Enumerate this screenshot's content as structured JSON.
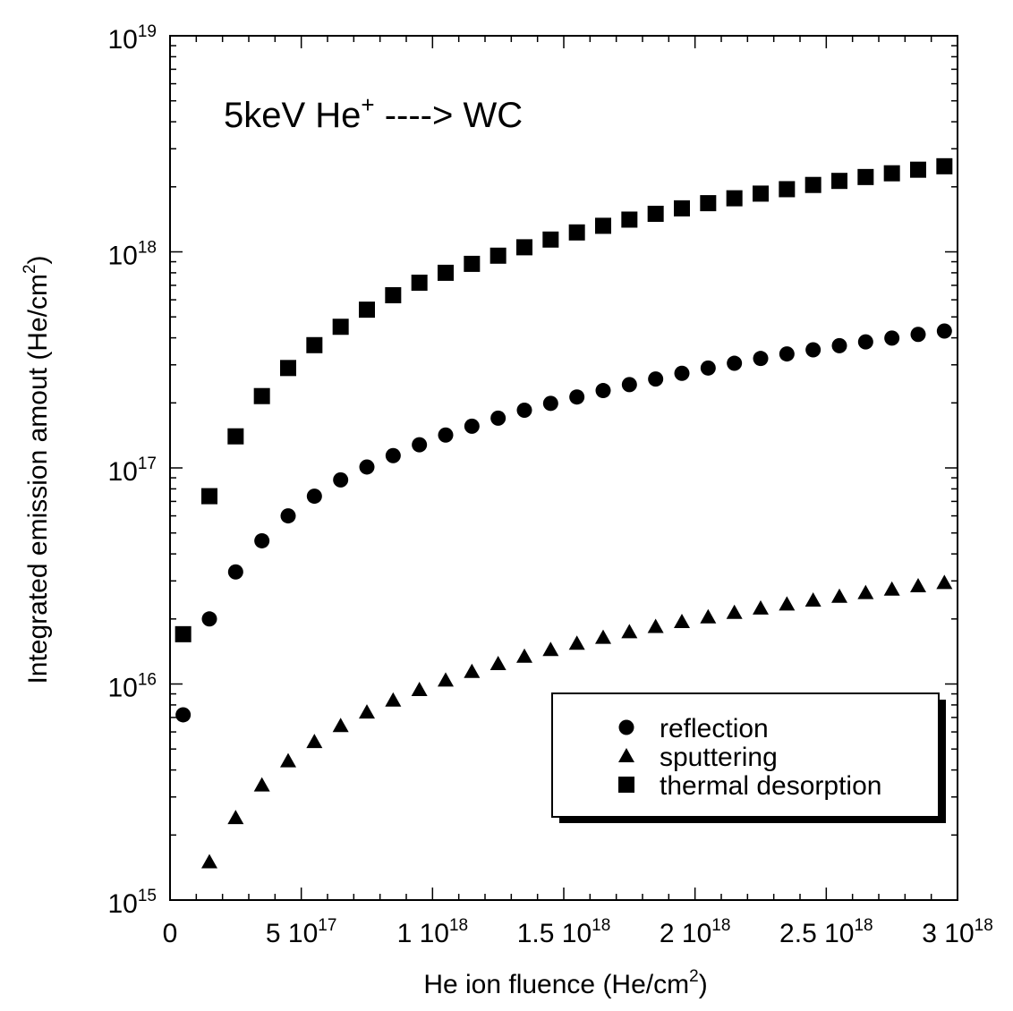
{
  "chart_data": {
    "type": "scatter",
    "annotation": {
      "main": "5keV He",
      "sup": "+",
      "rest": " ----> WC"
    },
    "xlabel": {
      "main": "He ion fluence (He/cm",
      "sup": "2",
      "close": ")"
    },
    "ylabel": {
      "main": "Integrated emission amout (He/cm",
      "sup": "2",
      "close": ")"
    },
    "xlim": [
      0,
      3e+18
    ],
    "ylim": [
      1000000000000000.0,
      1e+19
    ],
    "yscale": "log",
    "grid": false,
    "legend_position": "bottom-right",
    "x_ticks": [
      {
        "value": 0,
        "base": "0",
        "exp": ""
      },
      {
        "value": 5e+17,
        "base": "5 10",
        "exp": "17"
      },
      {
        "value": 1e+18,
        "base": "1 10",
        "exp": "18"
      },
      {
        "value": 1.5e+18,
        "base": "1.5 10",
        "exp": "18"
      },
      {
        "value": 2e+18,
        "base": "2 10",
        "exp": "18"
      },
      {
        "value": 2.5e+18,
        "base": "2.5 10",
        "exp": "18"
      },
      {
        "value": 3e+18,
        "base": "3 10",
        "exp": "18"
      }
    ],
    "y_ticks": [
      {
        "value": 1000000000000000.0,
        "base": "10",
        "exp": "15"
      },
      {
        "value": 1e+16,
        "base": "10",
        "exp": "16"
      },
      {
        "value": 1e+17,
        "base": "10",
        "exp": "17"
      },
      {
        "value": 1e+18,
        "base": "10",
        "exp": "18"
      },
      {
        "value": 1e+19,
        "base": "10",
        "exp": "19"
      }
    ],
    "series": [
      {
        "name": "reflection",
        "marker": "circle",
        "x": [
          5e+16,
          1.5e+17,
          2.5e+17,
          3.5e+17,
          4.5e+17,
          5.5e+17,
          6.5e+17,
          7.5e+17,
          8.5e+17,
          9.5e+17,
          1.05e+18,
          1.15e+18,
          1.25e+18,
          1.35e+18,
          1.45e+18,
          1.55e+18,
          1.65e+18,
          1.75e+18,
          1.85e+18,
          1.95e+18,
          2.05e+18,
          2.15e+18,
          2.25e+18,
          2.35e+18,
          2.45e+18,
          2.55e+18,
          2.65e+18,
          2.75e+18,
          2.85e+18,
          2.95e+18
        ],
        "y": [
          7200000000000000.0,
          2e+16,
          3.3e+16,
          4.6e+16,
          6e+16,
          7.4e+16,
          8.8e+16,
          1.01e+17,
          1.14e+17,
          1.28e+17,
          1.42e+17,
          1.56e+17,
          1.7e+17,
          1.85e+17,
          1.99e+17,
          2.13e+17,
          2.28e+17,
          2.43e+17,
          2.58e+17,
          2.74e+17,
          2.9e+17,
          3.05e+17,
          3.21e+17,
          3.37e+17,
          3.52e+17,
          3.68e+17,
          3.83e+17,
          3.99e+17,
          4.15e+17,
          4.3e+17
        ]
      },
      {
        "name": "sputtering",
        "marker": "triangle",
        "x": [
          1.5e+17,
          2.5e+17,
          3.5e+17,
          4.5e+17,
          5.5e+17,
          6.5e+17,
          7.5e+17,
          8.5e+17,
          9.5e+17,
          1.05e+18,
          1.15e+18,
          1.25e+18,
          1.35e+18,
          1.45e+18,
          1.55e+18,
          1.65e+18,
          1.75e+18,
          1.85e+18,
          1.95e+18,
          2.05e+18,
          2.15e+18,
          2.25e+18,
          2.35e+18,
          2.45e+18,
          2.55e+18,
          2.65e+18,
          2.75e+18,
          2.85e+18,
          2.95e+18
        ],
        "y": [
          1500000000000000.0,
          2400000000000000.0,
          3400000000000000.0,
          4400000000000000.0,
          5400000000000000.0,
          6400000000000000.0,
          7400000000000000.0,
          8400000000000000.0,
          9400000000000000.0,
          1.04e+16,
          1.14e+16,
          1.24e+16,
          1.34e+16,
          1.44e+16,
          1.54e+16,
          1.64e+16,
          1.74e+16,
          1.84e+16,
          1.94e+16,
          2.04e+16,
          2.14e+16,
          2.24e+16,
          2.34e+16,
          2.44e+16,
          2.54e+16,
          2.64e+16,
          2.74e+16,
          2.84e+16,
          2.94e+16
        ]
      },
      {
        "name": "thermal desorption",
        "marker": "square",
        "x": [
          5e+16,
          1.5e+17,
          2.5e+17,
          3.5e+17,
          4.5e+17,
          5.5e+17,
          6.5e+17,
          7.5e+17,
          8.5e+17,
          9.5e+17,
          1.05e+18,
          1.15e+18,
          1.25e+18,
          1.35e+18,
          1.45e+18,
          1.55e+18,
          1.65e+18,
          1.75e+18,
          1.85e+18,
          1.95e+18,
          2.05e+18,
          2.15e+18,
          2.25e+18,
          2.35e+18,
          2.45e+18,
          2.55e+18,
          2.65e+18,
          2.75e+18,
          2.85e+18,
          2.95e+18
        ],
        "y": [
          1.7e+16,
          7.4e+16,
          1.4e+17,
          2.15e+17,
          2.9e+17,
          3.7e+17,
          4.5e+17,
          5.4e+17,
          6.3e+17,
          7.2e+17,
          8e+17,
          8.8e+17,
          9.6e+17,
          1.05e+18,
          1.14e+18,
          1.23e+18,
          1.32e+18,
          1.41e+18,
          1.5e+18,
          1.59e+18,
          1.68e+18,
          1.77e+18,
          1.86e+18,
          1.95e+18,
          2.04e+18,
          2.13e+18,
          2.22e+18,
          2.31e+18,
          2.4e+18,
          2.49e+18
        ]
      }
    ]
  }
}
